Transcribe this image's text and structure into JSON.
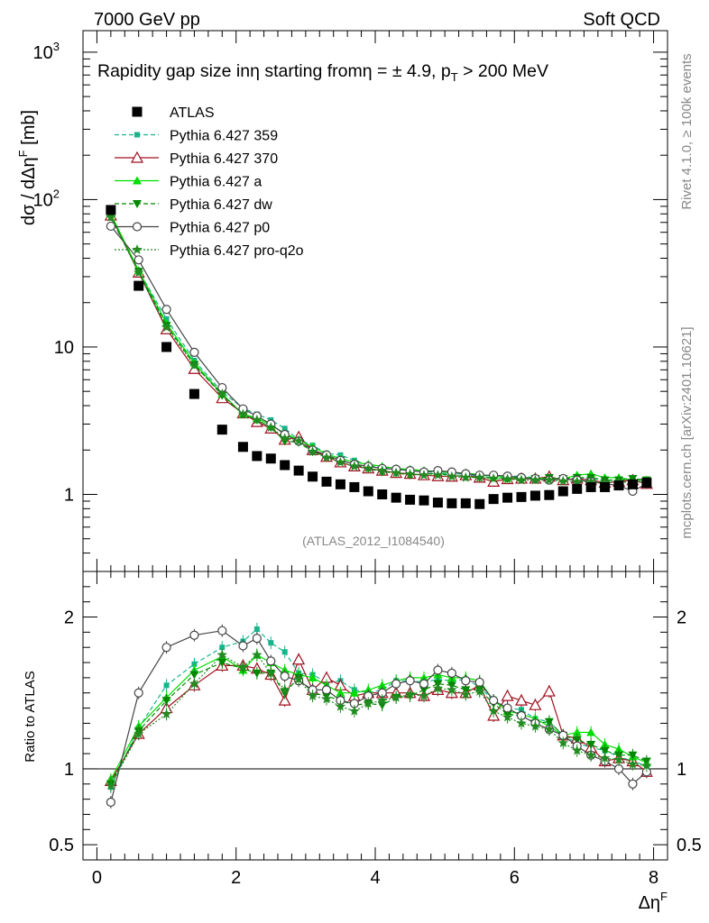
{
  "header": {
    "left": "7000 GeV pp",
    "right": "Soft QCD"
  },
  "side": {
    "rivet": "Rivet 4.1.0, ≥ 100k events",
    "mcplots": "mcplots.cern.ch [arXiv:2401.10621]"
  },
  "chart_data": {
    "type": "line",
    "title": "Rapidity gap size inη starting fromη = ± 4.9, p_T > 200 MeV",
    "title_parts": {
      "a": "Rapidity gap size in",
      "b": "η",
      "c": " starting from",
      "d": "η = ± 4.9, p",
      "e": "T",
      "f": " > 200 MeV"
    },
    "ylabel": "dσ / dΔηF [mb]",
    "ylabel_parts": {
      "a": "dσ / dΔη",
      "b": "F",
      "c": " [mb]"
    },
    "xlabel": "ΔηF",
    "xlabel_parts": {
      "a": "Δη",
      "b": "F"
    },
    "ratio_ylabel": "Ratio to ATLAS",
    "analysis": "(ATLAS_2012_I1084540)",
    "xlim": [
      -0.2,
      8.2
    ],
    "ylim": [
      0.3,
      1400
    ],
    "yscale": "log",
    "ratio_ylim": [
      0.4,
      2.3
    ],
    "x_ticks": [
      "0",
      "2",
      "4",
      "6",
      "8"
    ],
    "y_tick_labels": [
      "1",
      "10",
      "10",
      "10"
    ],
    "y_tick_sup": [
      "",
      "",
      "2",
      "3"
    ],
    "ratio_tick_labels": [
      "0.5",
      "1",
      "2"
    ],
    "x": [
      0.2,
      0.6,
      1.0,
      1.4,
      1.8,
      2.1,
      2.3,
      2.5,
      2.7,
      2.9,
      3.1,
      3.3,
      3.5,
      3.7,
      3.9,
      4.1,
      4.3,
      4.5,
      4.7,
      4.9,
      5.1,
      5.3,
      5.5,
      5.7,
      5.9,
      6.1,
      6.3,
      6.5,
      6.7,
      6.9,
      7.1,
      7.3,
      7.5,
      7.7,
      7.9
    ],
    "series": [
      {
        "name": "ATLAS",
        "color": "#000000",
        "marker": "square",
        "values": [
          85,
          26,
          10,
          4.8,
          2.75,
          2.1,
          1.82,
          1.75,
          1.58,
          1.45,
          1.32,
          1.22,
          1.17,
          1.12,
          1.05,
          1.0,
          0.95,
          0.92,
          0.91,
          0.88,
          0.87,
          0.87,
          0.86,
          0.93,
          0.95,
          0.96,
          0.98,
          0.99,
          1.05,
          1.09,
          1.12,
          1.12,
          1.15,
          1.17,
          1.2
        ],
        "ratio": [
          1,
          1,
          1,
          1,
          1,
          1,
          1,
          1,
          1,
          1,
          1,
          1,
          1,
          1,
          1,
          1,
          1,
          1,
          1,
          1,
          1,
          1,
          1,
          1,
          1,
          1,
          1,
          1,
          1,
          1,
          1,
          1,
          1,
          1,
          1
        ]
      },
      {
        "name": "Pythia 6.427 359",
        "color": "#19b38c",
        "marker": "smallsquare",
        "dash": "5,3",
        "values": [
          75,
          33,
          15.5,
          8.1,
          4.95,
          3.85,
          3.5,
          3.2,
          2.8,
          2.35,
          2.15,
          1.9,
          1.85,
          1.7,
          1.58,
          1.52,
          1.5,
          1.45,
          1.43,
          1.4,
          1.37,
          1.38,
          1.32,
          1.35,
          1.33,
          1.33,
          1.3,
          1.3,
          1.28,
          1.27,
          1.28,
          1.25,
          1.24,
          1.23,
          1.22
        ],
        "ratio": [
          0.88,
          1.27,
          1.55,
          1.69,
          1.8,
          1.84,
          1.92,
          1.83,
          1.77,
          1.63,
          1.62,
          1.57,
          1.58,
          1.52,
          1.5,
          1.52,
          1.58,
          1.58,
          1.57,
          1.59,
          1.58,
          1.59,
          1.54,
          1.45,
          1.4,
          1.39,
          1.33,
          1.31,
          1.22,
          1.17,
          1.14,
          1.12,
          1.08,
          1.05,
          1.02
        ]
      },
      {
        "name": "Pythia 6.427 370",
        "color": "#a01020",
        "marker": "triangle-open",
        "values": [
          78,
          32,
          13.2,
          7.1,
          4.5,
          3.55,
          3.1,
          2.8,
          2.35,
          2.45,
          2.0,
          1.8,
          1.65,
          1.55,
          1.5,
          1.45,
          1.4,
          1.38,
          1.35,
          1.33,
          1.32,
          1.35,
          1.3,
          1.22,
          1.27,
          1.28,
          1.28,
          1.32,
          1.25,
          1.28,
          1.25,
          1.2,
          1.22,
          1.25,
          1.18
        ],
        "ratio": [
          0.92,
          1.23,
          1.4,
          1.55,
          1.68,
          1.68,
          1.66,
          1.62,
          1.45,
          1.72,
          1.52,
          1.6,
          1.55,
          1.48,
          1.5,
          1.5,
          1.5,
          1.5,
          1.48,
          1.52,
          1.5,
          1.5,
          1.55,
          1.35,
          1.48,
          1.45,
          1.42,
          1.51,
          1.22,
          1.2,
          1.14,
          1.05,
          1.07,
          1.05,
          0.98
        ]
      },
      {
        "name": "Pythia 6.427 a",
        "color": "#00dd00",
        "marker": "triangle",
        "values": [
          80,
          33,
          14.5,
          7.8,
          4.8,
          3.5,
          3.3,
          2.95,
          2.6,
          2.35,
          2.1,
          1.88,
          1.75,
          1.65,
          1.6,
          1.55,
          1.5,
          1.48,
          1.45,
          1.43,
          1.4,
          1.4,
          1.36,
          1.33,
          1.3,
          1.3,
          1.3,
          1.27,
          1.28,
          1.35,
          1.38,
          1.3,
          1.3,
          1.25,
          1.25
        ],
        "ratio": [
          0.93,
          1.28,
          1.47,
          1.65,
          1.74,
          1.65,
          1.75,
          1.7,
          1.65,
          1.62,
          1.6,
          1.55,
          1.5,
          1.5,
          1.52,
          1.55,
          1.58,
          1.6,
          1.6,
          1.62,
          1.6,
          1.6,
          1.58,
          1.45,
          1.38,
          1.36,
          1.33,
          1.28,
          1.22,
          1.24,
          1.24,
          1.16,
          1.13,
          1.08,
          1.04
        ]
      },
      {
        "name": "Pythia 6.427 dw",
        "color": "#008800",
        "marker": "triangle-down",
        "dash": "5,3",
        "values": [
          77,
          32.5,
          14,
          7.6,
          4.7,
          3.5,
          3.2,
          2.85,
          2.3,
          2.25,
          1.95,
          1.8,
          1.7,
          1.6,
          1.5,
          1.42,
          1.4,
          1.35,
          1.38,
          1.38,
          1.35,
          1.32,
          1.3,
          1.3,
          1.28,
          1.27,
          1.28,
          1.3,
          1.28,
          1.3,
          1.3,
          1.25,
          1.25,
          1.28,
          1.25
        ],
        "ratio": [
          0.9,
          1.25,
          1.45,
          1.62,
          1.7,
          1.66,
          1.63,
          1.63,
          1.5,
          1.6,
          1.5,
          1.48,
          1.45,
          1.42,
          1.43,
          1.42,
          1.47,
          1.48,
          1.52,
          1.56,
          1.55,
          1.52,
          1.52,
          1.43,
          1.36,
          1.35,
          1.3,
          1.31,
          1.22,
          1.19,
          1.16,
          1.12,
          1.09,
          1.09,
          1.05
        ]
      },
      {
        "name": "Pythia 6.427 p0",
        "color": "#444444",
        "marker": "circle-open",
        "values": [
          66,
          39,
          18,
          9.2,
          5.3,
          3.8,
          3.4,
          3.0,
          2.55,
          2.3,
          2.0,
          1.85,
          1.7,
          1.6,
          1.55,
          1.5,
          1.48,
          1.45,
          1.42,
          1.45,
          1.42,
          1.38,
          1.35,
          1.35,
          1.33,
          1.3,
          1.28,
          1.25,
          1.28,
          1.25,
          1.22,
          1.18,
          1.15,
          1.05,
          1.18
        ],
        "ratio": [
          0.78,
          1.5,
          1.8,
          1.88,
          1.91,
          1.81,
          1.86,
          1.71,
          1.61,
          1.58,
          1.52,
          1.52,
          1.45,
          1.43,
          1.48,
          1.5,
          1.56,
          1.58,
          1.56,
          1.65,
          1.63,
          1.58,
          1.57,
          1.45,
          1.4,
          1.35,
          1.3,
          1.26,
          1.22,
          1.15,
          1.09,
          1.05,
          1.0,
          0.9,
          0.98
        ]
      },
      {
        "name": "Pythia 6.427 pro-q2o",
        "color": "#228b22",
        "marker": "star",
        "dash": "2,2",
        "values": [
          76,
          32,
          13.6,
          7.5,
          4.8,
          3.5,
          3.2,
          2.85,
          2.4,
          2.3,
          1.95,
          1.78,
          1.65,
          1.55,
          1.5,
          1.45,
          1.4,
          1.37,
          1.35,
          1.35,
          1.32,
          1.3,
          1.3,
          1.28,
          1.27,
          1.25,
          1.25,
          1.25,
          1.23,
          1.22,
          1.22,
          1.2,
          1.22,
          1.2,
          1.22
        ],
        "ratio": [
          0.89,
          1.23,
          1.36,
          1.56,
          1.75,
          1.67,
          1.75,
          1.63,
          1.52,
          1.59,
          1.48,
          1.46,
          1.41,
          1.38,
          1.43,
          1.45,
          1.47,
          1.49,
          1.48,
          1.53,
          1.52,
          1.49,
          1.51,
          1.38,
          1.34,
          1.3,
          1.28,
          1.26,
          1.17,
          1.12,
          1.09,
          1.07,
          1.06,
          1.03,
          1.02
        ]
      }
    ]
  }
}
